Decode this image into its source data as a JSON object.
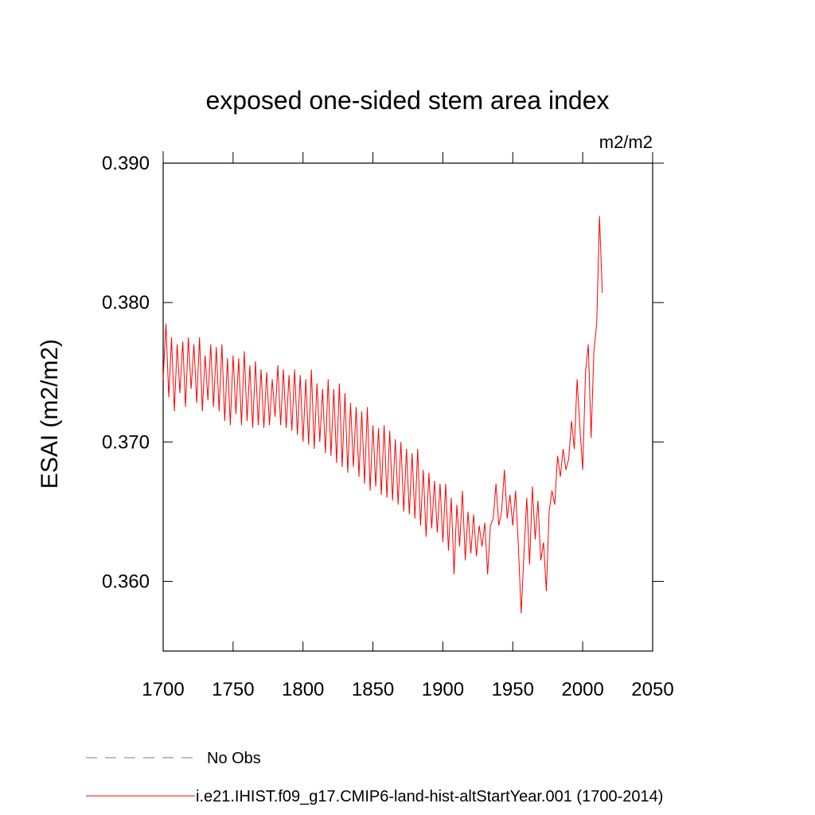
{
  "chart_data": {
    "type": "line",
    "title": "exposed one-sided stem area index",
    "units": "m2/m2",
    "ylabel": "ESAI  (m2/m2)",
    "xlim": [
      1700,
      2050
    ],
    "xticks": [
      1700,
      1750,
      1800,
      1850,
      1900,
      1950,
      2000,
      2050
    ],
    "ylim": [
      0.355,
      0.39
    ],
    "yticks": [
      {
        "value": 0.36,
        "label": "0.360"
      },
      {
        "value": 0.37,
        "label": "0.370"
      },
      {
        "value": 0.38,
        "label": "0.380"
      },
      {
        "value": 0.39,
        "label": "0.390"
      }
    ],
    "reference": {
      "name": "No Obs",
      "color": "#7a6fc0",
      "style": "dashed"
    },
    "x": [
      1700,
      1702,
      1704,
      1706,
      1708,
      1710,
      1712,
      1714,
      1716,
      1718,
      1720,
      1722,
      1724,
      1726,
      1728,
      1730,
      1732,
      1734,
      1736,
      1738,
      1740,
      1742,
      1744,
      1746,
      1748,
      1750,
      1752,
      1754,
      1756,
      1758,
      1760,
      1762,
      1764,
      1766,
      1768,
      1770,
      1772,
      1774,
      1776,
      1778,
      1780,
      1782,
      1784,
      1786,
      1788,
      1790,
      1792,
      1794,
      1796,
      1798,
      1800,
      1802,
      1804,
      1806,
      1808,
      1810,
      1812,
      1814,
      1816,
      1818,
      1820,
      1822,
      1824,
      1826,
      1828,
      1830,
      1832,
      1834,
      1836,
      1838,
      1840,
      1842,
      1844,
      1846,
      1848,
      1850,
      1852,
      1854,
      1856,
      1858,
      1860,
      1862,
      1864,
      1866,
      1868,
      1870,
      1872,
      1874,
      1876,
      1878,
      1880,
      1882,
      1884,
      1886,
      1888,
      1890,
      1892,
      1894,
      1896,
      1898,
      1900,
      1902,
      1904,
      1906,
      1908,
      1910,
      1912,
      1914,
      1916,
      1918,
      1920,
      1922,
      1924,
      1926,
      1928,
      1930,
      1932,
      1934,
      1936,
      1938,
      1940,
      1942,
      1944,
      1946,
      1948,
      1950,
      1952,
      1954,
      1956,
      1958,
      1960,
      1962,
      1964,
      1966,
      1968,
      1970,
      1972,
      1974,
      1976,
      1978,
      1980,
      1982,
      1984,
      1986,
      1988,
      1990,
      1992,
      1994,
      1996,
      1998,
      2000,
      2002,
      2004,
      2006,
      2008,
      2010,
      2012,
      2014
    ],
    "series": [
      {
        "name": "i.e21.IHIST.f09_g17.CMIP6-land-hist-altStartYear.001 (1700-2014)",
        "color": "#ff0000",
        "values": [
          0.3745,
          0.3785,
          0.3732,
          0.3775,
          0.3722,
          0.377,
          0.3735,
          0.3772,
          0.3725,
          0.3775,
          0.3738,
          0.377,
          0.3728,
          0.3775,
          0.3722,
          0.3762,
          0.373,
          0.377,
          0.3725,
          0.3768,
          0.3722,
          0.377,
          0.3715,
          0.376,
          0.3712,
          0.3762,
          0.372,
          0.376,
          0.3712,
          0.3765,
          0.3715,
          0.3755,
          0.371,
          0.3758,
          0.3712,
          0.3752,
          0.371,
          0.375,
          0.3712,
          0.3745,
          0.3718,
          0.3755,
          0.3712,
          0.3752,
          0.371,
          0.3748,
          0.3708,
          0.3752,
          0.3705,
          0.3748,
          0.37,
          0.3745,
          0.3698,
          0.3752,
          0.3695,
          0.3742,
          0.37,
          0.3738,
          0.3692,
          0.3745,
          0.369,
          0.3738,
          0.3685,
          0.3742,
          0.3682,
          0.3735,
          0.3678,
          0.3728,
          0.3682,
          0.3725,
          0.3675,
          0.3722,
          0.367,
          0.3725,
          0.3665,
          0.3712,
          0.3668,
          0.371,
          0.3662,
          0.3712,
          0.366,
          0.3708,
          0.3658,
          0.3702,
          0.3655,
          0.37,
          0.365,
          0.3695,
          0.3648,
          0.3692,
          0.3645,
          0.3695,
          0.364,
          0.368,
          0.3632,
          0.3678,
          0.3638,
          0.3672,
          0.3635,
          0.367,
          0.3628,
          0.367,
          0.3622,
          0.366,
          0.3605,
          0.3655,
          0.3625,
          0.3665,
          0.3615,
          0.365,
          0.362,
          0.3648,
          0.3618,
          0.364,
          0.3625,
          0.3642,
          0.3605,
          0.364,
          0.3645,
          0.367,
          0.364,
          0.365,
          0.368,
          0.3645,
          0.3662,
          0.364,
          0.3665,
          0.3625,
          0.3577,
          0.362,
          0.366,
          0.3612,
          0.3668,
          0.363,
          0.3658,
          0.3615,
          0.3628,
          0.3593,
          0.365,
          0.3665,
          0.3655,
          0.369,
          0.3675,
          0.3695,
          0.368,
          0.3688,
          0.3715,
          0.3695,
          0.3745,
          0.371,
          0.368,
          0.375,
          0.377,
          0.3703,
          0.3765,
          0.3785,
          0.3862,
          0.3807
        ]
      }
    ]
  }
}
